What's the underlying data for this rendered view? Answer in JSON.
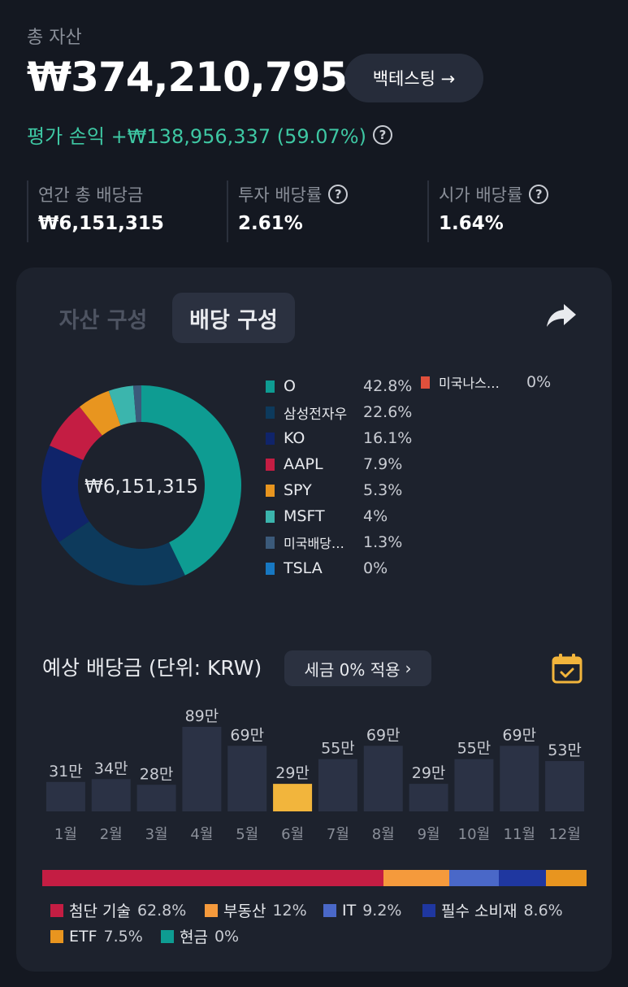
{
  "header": {
    "total_label": "총 자산",
    "total_value": "₩374,210,795",
    "backtest_label": "백테스팅 →",
    "pnl_text": "평가 손익 +₩138,956,337 (59.07%)"
  },
  "stats": [
    {
      "label": "연간 총 배당금",
      "value": "₩6,151,315",
      "help": false
    },
    {
      "label": "투자 배당률",
      "value": "2.61%",
      "help": true
    },
    {
      "label": "시가 배당률",
      "value": "1.64%",
      "help": true
    }
  ],
  "tabs": {
    "asset": "자산 구성",
    "dividend": "배당 구성"
  },
  "donut": {
    "center_label": "₩6,151,315",
    "slices": [
      {
        "name": "O",
        "percent": 42.8,
        "label": "42.8%",
        "color": "#0e9c92"
      },
      {
        "name": "삼성전자우",
        "percent": 22.6,
        "label": "22.6%",
        "color": "#0d3a5c"
      },
      {
        "name": "KO",
        "percent": 16.1,
        "label": "16.1%",
        "color": "#10246a"
      },
      {
        "name": "AAPL",
        "percent": 7.9,
        "label": "7.9%",
        "color": "#c41d43"
      },
      {
        "name": "SPY",
        "percent": 5.3,
        "label": "5.3%",
        "color": "#e8951f"
      },
      {
        "name": "MSFT",
        "percent": 4.0,
        "label": "4%",
        "color": "#3bb5ad"
      },
      {
        "name": "미국배당…",
        "percent": 1.3,
        "label": "1.3%",
        "color": "#3b5a7a"
      },
      {
        "name": "TSLA",
        "percent": 0,
        "label": "0%",
        "color": "#1778c2"
      },
      {
        "name": "미국나스…",
        "percent": 0,
        "label": "0%",
        "color": "#e0503c"
      }
    ]
  },
  "monthly": {
    "title": "예상 배당금 (단위: KRW)",
    "tax_chip": "세금 0% 적용",
    "chart_data": {
      "type": "bar",
      "categories": [
        "1월",
        "2월",
        "3월",
        "4월",
        "5월",
        "6월",
        "7월",
        "8월",
        "9월",
        "10월",
        "11월",
        "12월"
      ],
      "values": [
        31,
        34,
        28,
        89,
        69,
        29,
        55,
        69,
        29,
        55,
        69,
        53
      ],
      "value_labels": [
        "31만",
        "34만",
        "28만",
        "89만",
        "69만",
        "29만",
        "55만",
        "69만",
        "29만",
        "55만",
        "69만",
        "53만"
      ],
      "highlight_index": 5,
      "bar_color": "#2b3245",
      "highlight_color": "#f2b53c"
    }
  },
  "sectors": [
    {
      "name": "첨단 기술",
      "percent": 62.8,
      "label": "62.8%",
      "color": "#c41d43"
    },
    {
      "name": "부동산",
      "percent": 12,
      "label": "12%",
      "color": "#f59a3c"
    },
    {
      "name": "IT",
      "percent": 9.2,
      "label": "9.2%",
      "color": "#4a68c8"
    },
    {
      "name": "필수 소비재",
      "percent": 8.6,
      "label": "8.6%",
      "color": "#1f37a0"
    },
    {
      "name": "ETF",
      "percent": 7.5,
      "label": "7.5%",
      "color": "#e8951f"
    },
    {
      "name": "현금",
      "percent": 0,
      "label": "0%",
      "color": "#0e9c92"
    }
  ]
}
